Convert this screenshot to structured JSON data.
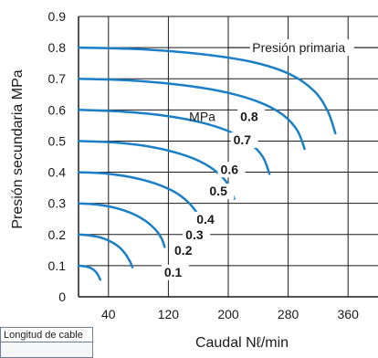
{
  "chart_data": {
    "type": "line",
    "xlabel": "Caudal Nℓ/min",
    "ylabel": "Presión secundaria MPa",
    "xlim": [
      0,
      400
    ],
    "ylim": [
      0,
      0.9
    ],
    "xticks": [
      "40",
      "120",
      "200",
      "280",
      "360"
    ],
    "yticks": [
      "0",
      "0.1",
      "0.2",
      "0.3",
      "0.4",
      "0.5",
      "0.6",
      "0.7",
      "0.8",
      "0.9"
    ],
    "grid": true,
    "annotation": "Presión primaria",
    "unit_label": "MPa",
    "series": [
      {
        "name": "0.1",
        "x": [
          0,
          8,
          16,
          22,
          26,
          29
        ],
        "y": [
          0.1,
          0.098,
          0.093,
          0.083,
          0.07,
          0.055
        ]
      },
      {
        "name": "0.2",
        "x": [
          0,
          15,
          30,
          44,
          55,
          63,
          69,
          72
        ],
        "y": [
          0.2,
          0.197,
          0.19,
          0.176,
          0.158,
          0.136,
          0.112,
          0.095
        ]
      },
      {
        "name": "0.3",
        "x": [
          0,
          25,
          50,
          72,
          90,
          103,
          111,
          115
        ],
        "y": [
          0.3,
          0.296,
          0.285,
          0.267,
          0.243,
          0.215,
          0.187,
          0.16
        ]
      },
      {
        "name": "0.4",
        "x": [
          0,
          35,
          70,
          102,
          128,
          146,
          158,
          166
        ],
        "y": [
          0.4,
          0.396,
          0.384,
          0.364,
          0.337,
          0.305,
          0.27,
          0.235
        ]
      },
      {
        "name": "0.5",
        "x": [
          0,
          45,
          90,
          130,
          162,
          185,
          200,
          208
        ],
        "y": [
          0.5,
          0.496,
          0.484,
          0.463,
          0.435,
          0.4,
          0.36,
          0.315
        ]
      },
      {
        "name": "0.6",
        "x": [
          0,
          55,
          110,
          160,
          200,
          228,
          246,
          255
        ],
        "y": [
          0.6,
          0.595,
          0.583,
          0.562,
          0.532,
          0.495,
          0.45,
          0.395
        ]
      },
      {
        "name": "0.7",
        "x": [
          0,
          65,
          130,
          190,
          238,
          272,
          292,
          302
        ],
        "y": [
          0.7,
          0.695,
          0.682,
          0.66,
          0.628,
          0.586,
          0.535,
          0.475
        ]
      },
      {
        "name": "0.8",
        "x": [
          0,
          80,
          160,
          230,
          282,
          315,
          333,
          343
        ],
        "y": [
          0.8,
          0.795,
          0.78,
          0.755,
          0.715,
          0.66,
          0.595,
          0.525
        ]
      }
    ]
  },
  "cut_box": {
    "header": "Longitud de cable"
  }
}
